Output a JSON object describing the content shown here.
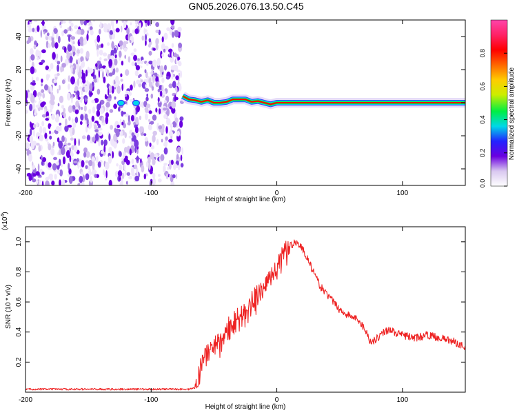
{
  "title": "GN05.2026.076.13.50.C45",
  "chart_data": [
    {
      "type": "heatmap",
      "title": "",
      "xlabel": "Height of straight line (km)",
      "ylabel": "Frequency (Hz)",
      "xlim": [
        -200,
        150
      ],
      "ylim": [
        -50,
        50
      ],
      "x_ticks": [
        -200,
        -100,
        0,
        100
      ],
      "y_ticks": [
        -40,
        -20,
        0,
        20,
        40
      ],
      "noise_region": {
        "x_range": [
          -200,
          -75
        ],
        "description": "broadband noise"
      },
      "signal_trace": {
        "x": [
          -75,
          -70,
          -65,
          -60,
          -55,
          -50,
          -45,
          -40,
          -35,
          -30,
          -25,
          -20,
          -15,
          -10,
          -5,
          0,
          150
        ],
        "frequency": [
          4,
          2,
          1.5,
          0.5,
          1.5,
          0,
          0,
          0.5,
          2,
          2,
          2,
          0.5,
          1,
          0,
          -1,
          0,
          0
        ]
      },
      "weak_spots": [
        {
          "x": -124,
          "frequency": 1.5
        },
        {
          "x": -112,
          "frequency": 1.5
        }
      ],
      "colorbar": {
        "label": "Normalized spectral amplitude",
        "range": [
          0,
          1
        ],
        "ticks": [
          "0.0",
          "0.2",
          "0.4",
          "0.6",
          "0.8"
        ],
        "colors": [
          "#ffffff",
          "#d9c8f0",
          "#6a00e0",
          "#2222ff",
          "#00d8e8",
          "#00ee44",
          "#ccee00",
          "#ffcc00",
          "#ff6600",
          "#ff0000",
          "#ff2266",
          "#ff44aa"
        ]
      }
    },
    {
      "type": "line",
      "title": "",
      "xlabel": "Height of straight line (km)",
      "ylabel": "SNR (10 * v/v)",
      "y_multiplier": "(x10",
      "y_multiplier_exp": "4",
      "xlim": [
        -200,
        150
      ],
      "ylim": [
        0,
        1.1
      ],
      "x_ticks": [
        -200,
        -100,
        0,
        100
      ],
      "y_ticks": [
        "0.2",
        "0.4",
        "0.6",
        "0.8",
        "1.0"
      ],
      "series": [
        {
          "name": "SNR",
          "color": "#ee2222",
          "x": [
            -200,
            -180,
            -160,
            -140,
            -120,
            -100,
            -80,
            -70,
            -65,
            -60,
            -55,
            -50,
            -40,
            -30,
            -20,
            -10,
            0,
            5,
            10,
            15,
            20,
            25,
            30,
            35,
            40,
            45,
            50,
            55,
            60,
            65,
            70,
            75,
            80,
            85,
            90,
            95,
            100,
            110,
            120,
            130,
            140,
            150
          ],
          "values": [
            0.02,
            0.02,
            0.02,
            0.02,
            0.02,
            0.02,
            0.02,
            0.02,
            0.03,
            0.2,
            0.28,
            0.32,
            0.42,
            0.5,
            0.6,
            0.72,
            0.85,
            0.93,
            0.97,
            1.0,
            0.96,
            0.88,
            0.78,
            0.7,
            0.65,
            0.6,
            0.55,
            0.52,
            0.5,
            0.48,
            0.42,
            0.33,
            0.36,
            0.4,
            0.42,
            0.39,
            0.38,
            0.36,
            0.38,
            0.36,
            0.34,
            0.3
          ]
        }
      ]
    }
  ]
}
